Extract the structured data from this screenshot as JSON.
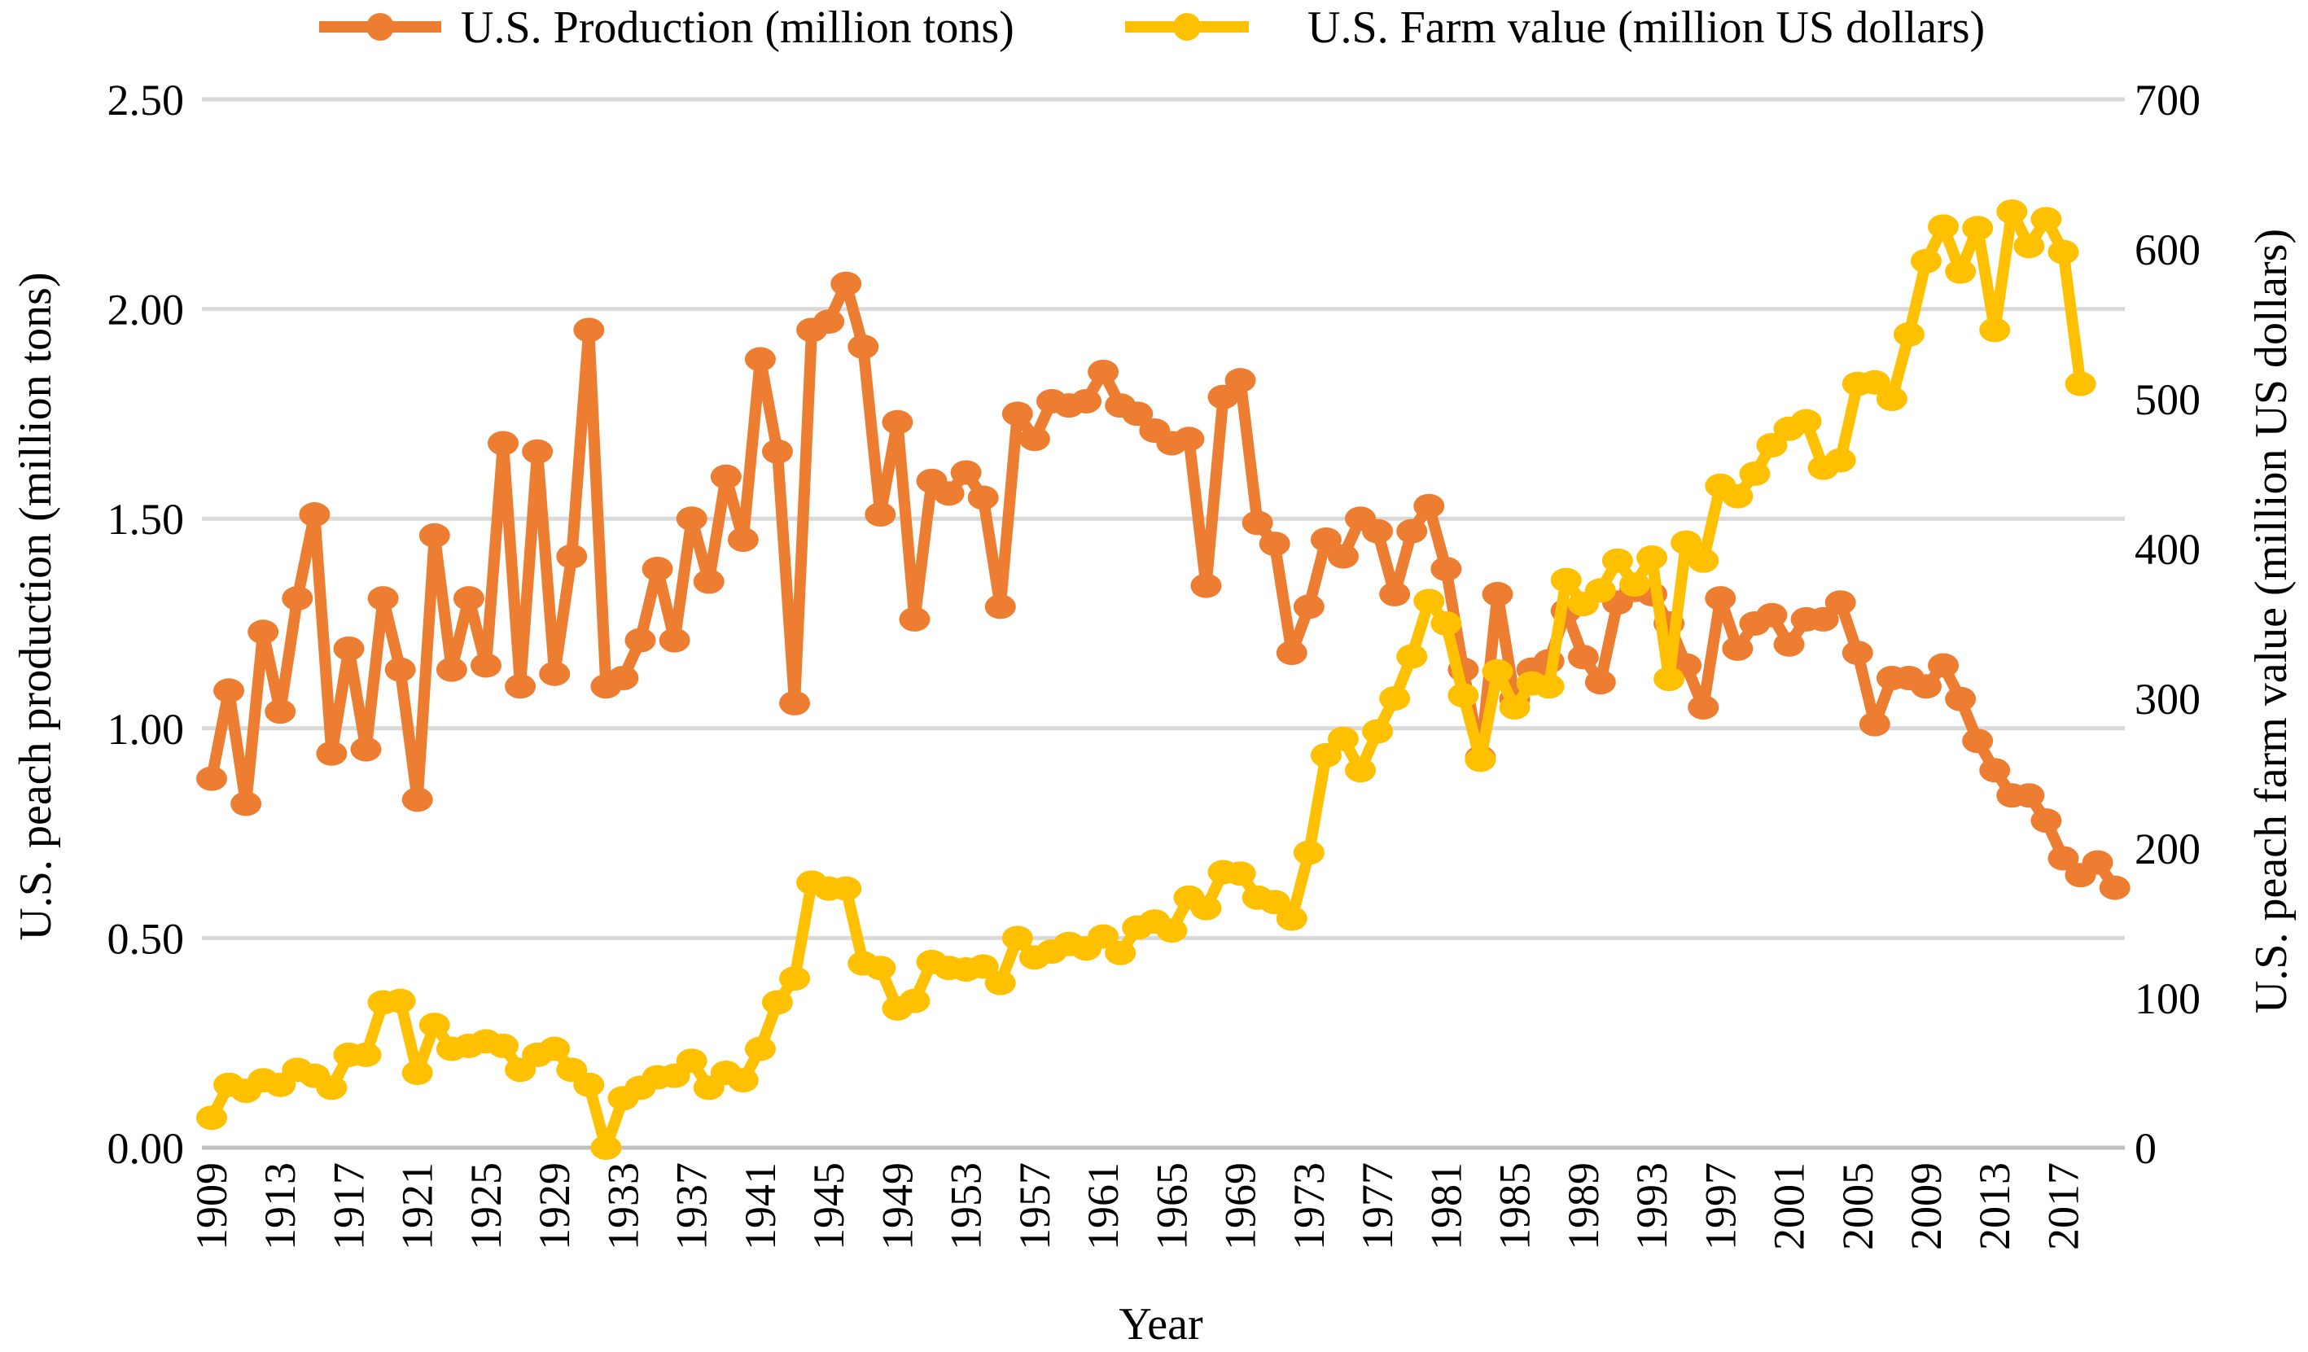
{
  "chart_data": {
    "type": "line",
    "xlabel": "Year",
    "ylabel_left": "U.S. peach production (million tons)",
    "ylabel_right": "U.S. peach farm value (million US dollars)",
    "ylim_left": [
      0,
      2.5
    ],
    "ylim_right": [
      0,
      700
    ],
    "left_ticks": [
      "0.00",
      "0.50",
      "1.00",
      "1.50",
      "2.00",
      "2.50"
    ],
    "right_ticks": [
      "0",
      "100",
      "200",
      "300",
      "400",
      "500",
      "600",
      "700"
    ],
    "x_tick_labels": [
      "1909",
      "1913",
      "1917",
      "1921",
      "1925",
      "1929",
      "1933",
      "1937",
      "1941",
      "1945",
      "1949",
      "1953",
      "1957",
      "1961",
      "1965",
      "1969",
      "1973",
      "1977",
      "1981",
      "1985",
      "1989",
      "1993",
      "1997",
      "2001",
      "2005",
      "2009",
      "2013",
      "2017"
    ],
    "x_start": 1909,
    "grid": true,
    "legend_position": "top",
    "series": [
      {
        "name": "U.S. Production (million tons)",
        "axis": "left",
        "color": "#ED7D31",
        "start_year": 1909,
        "values": [
          0.88,
          1.09,
          0.82,
          1.23,
          1.04,
          1.31,
          1.51,
          0.94,
          1.19,
          0.95,
          1.31,
          1.14,
          0.83,
          1.46,
          1.14,
          1.31,
          1.15,
          1.68,
          1.1,
          1.66,
          1.13,
          1.41,
          1.95,
          1.1,
          1.12,
          1.21,
          1.38,
          1.21,
          1.5,
          1.35,
          1.6,
          1.45,
          1.88,
          1.66,
          1.06,
          1.95,
          1.97,
          2.06,
          1.91,
          1.51,
          1.73,
          1.26,
          1.59,
          1.56,
          1.61,
          1.55,
          1.29,
          1.75,
          1.69,
          1.78,
          1.77,
          1.78,
          1.85,
          1.77,
          1.75,
          1.71,
          1.68,
          1.69,
          1.34,
          1.79,
          1.83,
          1.49,
          1.44,
          1.18,
          1.29,
          1.45,
          1.41,
          1.5,
          1.47,
          1.32,
          1.47,
          1.53,
          1.38,
          1.14,
          0.93,
          1.32,
          1.07,
          1.14,
          1.16,
          1.28,
          1.17,
          1.11,
          1.3,
          1.33,
          1.32,
          1.25,
          1.15,
          1.05,
          1.31,
          1.19,
          1.25,
          1.27,
          1.2,
          1.26,
          1.26,
          1.3,
          1.18,
          1.01,
          1.12,
          1.12,
          1.1,
          1.15,
          1.07,
          0.97,
          0.9,
          0.84,
          0.84,
          0.78,
          0.69,
          0.65,
          0.68,
          0.62
        ]
      },
      {
        "name": "U.S. Farm value (million US dollars)",
        "axis": "right",
        "color": "#FFC000",
        "start_year": 1909,
        "values": [
          20,
          42,
          38,
          45,
          42,
          52,
          48,
          40,
          62,
          62,
          97,
          98,
          50,
          82,
          66,
          68,
          71,
          68,
          52,
          62,
          66,
          52,
          42,
          0,
          33,
          40,
          47,
          48,
          58,
          40,
          50,
          45,
          66,
          97,
          113,
          177,
          173,
          173,
          123,
          120,
          93,
          98,
          124,
          120,
          119,
          121,
          110,
          140,
          127,
          131,
          136,
          133,
          141,
          130,
          147,
          151,
          145,
          167,
          160,
          184,
          183,
          167,
          164,
          153,
          197,
          262,
          273,
          252,
          278,
          300,
          328,
          365,
          350,
          302,
          259,
          318,
          294,
          310,
          308,
          379,
          363,
          372,
          392,
          376,
          394,
          313,
          404,
          392,
          442,
          435,
          450,
          469,
          480,
          485,
          454,
          459,
          510,
          511,
          500,
          543,
          592,
          615,
          585,
          614,
          546,
          625,
          602,
          620,
          598,
          510
        ]
      }
    ]
  }
}
